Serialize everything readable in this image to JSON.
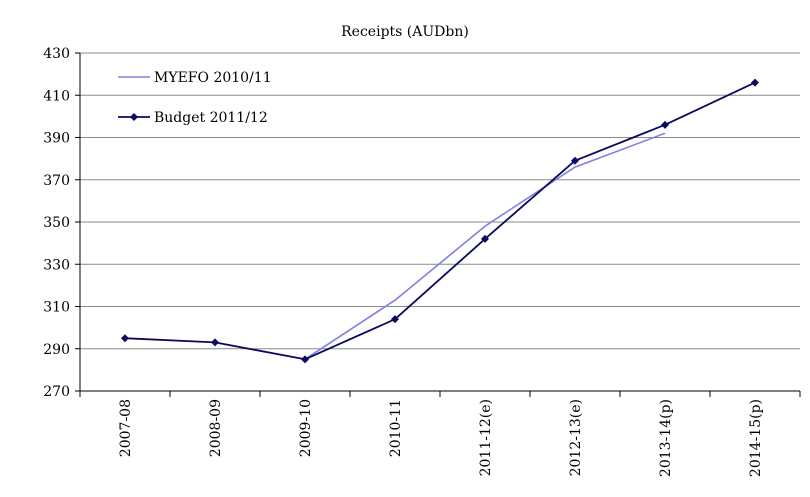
{
  "chart_data": {
    "type": "line",
    "title": "Receipts (AUDbn)",
    "xlabel": "",
    "ylabel": "",
    "categories": [
      "2007-08",
      "2008-09",
      "2009-10",
      "2010-11",
      "2011-12(e)",
      "2012-13(e)",
      "2013-14(p)",
      "2014-15(p)"
    ],
    "ylim": [
      270,
      430
    ],
    "yticks": [
      270,
      290,
      310,
      330,
      350,
      370,
      390,
      410,
      430
    ],
    "grid": "horizontal",
    "legend_position": "top-left",
    "series": [
      {
        "name": "MYEFO 2010/11",
        "color": "#8080e0",
        "marker": "none",
        "values": [
          null,
          null,
          285,
          313,
          348,
          376,
          392,
          null
        ]
      },
      {
        "name": "Budget 2011/12",
        "color": "#0a0a5e",
        "marker": "diamond",
        "values": [
          295,
          293,
          285,
          304,
          342,
          379,
          396,
          416
        ]
      }
    ]
  }
}
